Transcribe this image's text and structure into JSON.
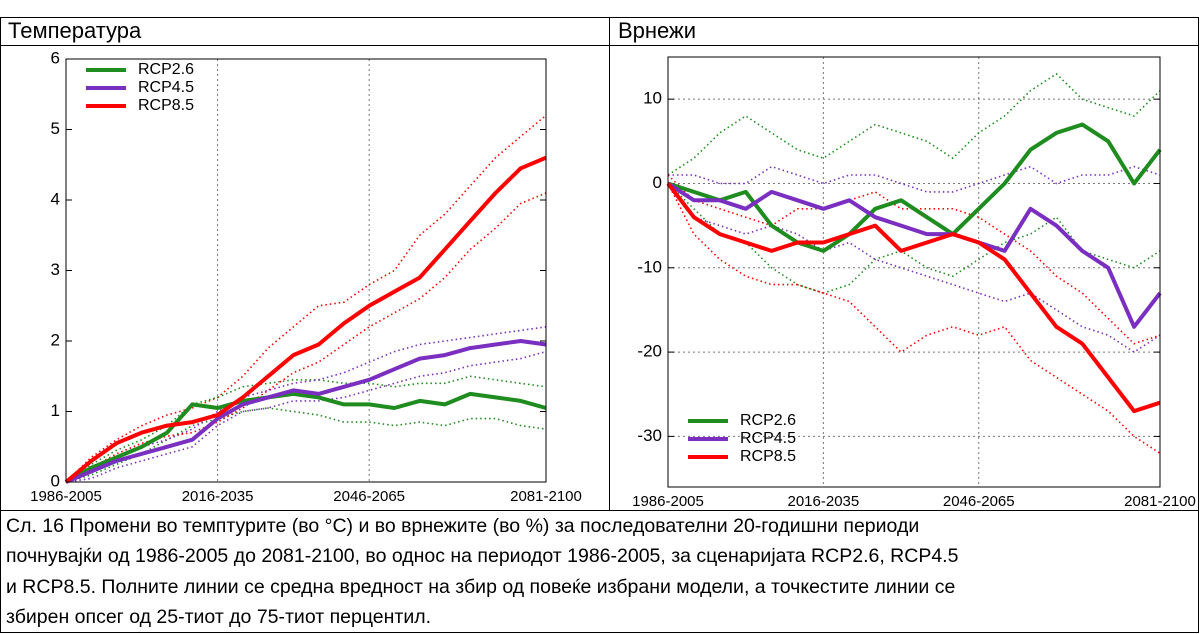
{
  "chart_data": [
    {
      "type": "line",
      "title": "Температура",
      "categories": [
        "1986-2005",
        null,
        null,
        null,
        null,
        null,
        "2016-2035",
        null,
        null,
        null,
        null,
        null,
        "2046-2065",
        null,
        null,
        null,
        null,
        null,
        null,
        "2081-2100"
      ],
      "ylim": [
        0,
        6
      ],
      "yticks": [
        0,
        1,
        2,
        3,
        4,
        5,
        6
      ],
      "xgrid": true,
      "ygrid": false,
      "legend": "upper left",
      "series": [
        {
          "name": "RCP2.6",
          "color": "#1e8c1e",
          "values": [
            0,
            0.2,
            0.35,
            0.5,
            0.7,
            1.1,
            1.05,
            1.15,
            1.2,
            1.25,
            1.2,
            1.1,
            1.1,
            1.05,
            1.15,
            1.1,
            1.25,
            1.2,
            1.15,
            1.05
          ],
          "p25": [
            0,
            0.1,
            0.25,
            0.4,
            0.6,
            0.8,
            0.9,
            1.0,
            1.05,
            1.0,
            0.95,
            0.85,
            0.85,
            0.8,
            0.85,
            0.8,
            0.9,
            0.9,
            0.8,
            0.75
          ],
          "p75": [
            0,
            0.25,
            0.45,
            0.6,
            0.8,
            1.1,
            1.2,
            1.35,
            1.4,
            1.45,
            1.45,
            1.4,
            1.4,
            1.35,
            1.4,
            1.4,
            1.5,
            1.45,
            1.4,
            1.35
          ]
        },
        {
          "name": "RCP4.5",
          "color": "#7a2fc0",
          "values": [
            0,
            0.15,
            0.3,
            0.4,
            0.5,
            0.6,
            0.9,
            1.1,
            1.2,
            1.3,
            1.25,
            1.35,
            1.45,
            1.6,
            1.75,
            1.8,
            1.9,
            1.95,
            2.0,
            1.95
          ],
          "p25": [
            0,
            0.05,
            0.2,
            0.3,
            0.4,
            0.5,
            0.8,
            1.0,
            1.05,
            1.15,
            1.15,
            1.2,
            1.3,
            1.4,
            1.5,
            1.55,
            1.65,
            1.7,
            1.75,
            1.85
          ],
          "p75": [
            0,
            0.2,
            0.35,
            0.5,
            0.6,
            0.75,
            1.0,
            1.2,
            1.3,
            1.4,
            1.45,
            1.55,
            1.7,
            1.85,
            1.95,
            2.0,
            2.05,
            2.1,
            2.15,
            2.2
          ]
        },
        {
          "name": "RCP8.5",
          "color": "#ff0000",
          "values": [
            0,
            0.3,
            0.55,
            0.7,
            0.8,
            0.85,
            0.95,
            1.2,
            1.5,
            1.8,
            1.95,
            2.25,
            2.5,
            2.7,
            2.9,
            3.3,
            3.7,
            4.1,
            4.45,
            4.6
          ],
          "p25": [
            0,
            0.2,
            0.4,
            0.55,
            0.65,
            0.7,
            0.85,
            1.05,
            1.3,
            1.55,
            1.7,
            1.95,
            2.2,
            2.4,
            2.6,
            2.9,
            3.3,
            3.6,
            3.95,
            4.1
          ],
          "p75": [
            0,
            0.35,
            0.6,
            0.8,
            0.95,
            1.05,
            1.2,
            1.5,
            1.9,
            2.2,
            2.5,
            2.55,
            2.8,
            3.0,
            3.5,
            3.8,
            4.2,
            4.6,
            4.9,
            5.2
          ]
        }
      ]
    },
    {
      "type": "line",
      "title": "Врнежи",
      "categories": [
        "1986-2005",
        null,
        null,
        null,
        null,
        null,
        "2016-2035",
        null,
        null,
        null,
        null,
        null,
        "2046-2065",
        null,
        null,
        null,
        null,
        null,
        null,
        "2081-2100"
      ],
      "ylim": [
        -36,
        15
      ],
      "yticks": [
        -30,
        -20,
        -10,
        0,
        10
      ],
      "xgrid": true,
      "ygrid": true,
      "legend": "lower left",
      "series": [
        {
          "name": "RCP2.6",
          "color": "#1e8c1e",
          "values": [
            0,
            -1,
            -2,
            -1,
            -5,
            -7,
            -8,
            -6,
            -3,
            -2,
            -4,
            -6,
            -3,
            0,
            4,
            6,
            7,
            5,
            0,
            4
          ],
          "p25": [
            0,
            -3,
            -6,
            -7,
            -10,
            -12,
            -13,
            -12,
            -9,
            -8,
            -10,
            -11,
            -9,
            -7,
            -6,
            -4,
            -8,
            -9,
            -10,
            -8
          ],
          "p75": [
            1,
            3,
            6,
            8,
            6,
            4,
            3,
            5,
            7,
            6,
            5,
            3,
            6,
            8,
            11,
            13,
            10,
            9,
            8,
            11
          ]
        },
        {
          "name": "RCP4.5",
          "color": "#7a2fc0",
          "values": [
            0,
            -2,
            -2,
            -3,
            -1,
            -2,
            -3,
            -2,
            -4,
            -5,
            -6,
            -6,
            -7,
            -8,
            -3,
            -5,
            -8,
            -10,
            -17,
            -13
          ],
          "p25": [
            0,
            -4,
            -5,
            -6,
            -5,
            -6,
            -8,
            -7,
            -9,
            -10,
            -11,
            -12,
            -13,
            -14,
            -13,
            -15,
            -17,
            -18,
            -20,
            -18
          ],
          "p75": [
            1,
            1,
            0,
            0,
            2,
            1,
            0,
            1,
            1,
            0,
            -1,
            -1,
            0,
            1,
            2,
            0,
            1,
            1,
            2,
            1
          ]
        },
        {
          "name": "RCP8.5",
          "color": "#ff0000",
          "values": [
            0,
            -4,
            -6,
            -7,
            -8,
            -7,
            -7,
            -6,
            -5,
            -8,
            -7,
            -6,
            -7,
            -9,
            -13,
            -17,
            -19,
            -23,
            -27,
            -26
          ],
          "p25": [
            0,
            -6,
            -9,
            -11,
            -12,
            -12,
            -13,
            -14,
            -17,
            -20,
            -18,
            -17,
            -18,
            -17,
            -21,
            -23,
            -25,
            -27,
            -30,
            -32
          ],
          "p75": [
            1,
            -2,
            -3,
            -4,
            -5,
            -3,
            -3,
            -2,
            -1,
            -3,
            -3,
            -3,
            -4,
            -6,
            -8,
            -11,
            -13,
            -16,
            -19,
            -18
          ]
        }
      ]
    }
  ],
  "caption": [
    "Сл. 16 Промени во темптурите (во °C) и во врнежите (во %) за последователни 20-годишни периоди",
    "почнувајќи од 1986-2005 до 2081-2100, во однос на периодот 1986-2005, за сценаријата RCP2.6, RCP4.5",
    "и RCP8.5. Полните линии се средна вредност на збир од повеќе избрани модели, а точкестите линии се",
    "збирен опсег од 25-тиот до 75-тиот перцентил."
  ]
}
